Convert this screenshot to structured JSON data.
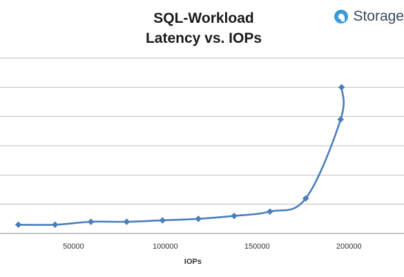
{
  "brand": {
    "name": "Storage",
    "icon": "storage-logo-icon",
    "color": "#3d9ad6"
  },
  "chart_data": {
    "type": "line",
    "title": "SQL-Workload",
    "subtitle": "Latency vs. IOPs",
    "xlabel": "IOPs",
    "ylabel": "",
    "xlim": [
      10000,
      230000
    ],
    "xticks": [
      50000,
      100000,
      150000,
      200000
    ],
    "grid": "horizontal",
    "line_color": "#4a7ebb",
    "series": [
      {
        "x": [
          20000,
          40000,
          59500,
          79000,
          98500,
          118000,
          137500,
          157000,
          176500,
          195500,
          196000
        ],
        "y": [
          0.3,
          0.3,
          0.4,
          0.4,
          0.45,
          0.5,
          0.6,
          0.75,
          1.2,
          3.9,
          5.0
        ]
      }
    ]
  }
}
